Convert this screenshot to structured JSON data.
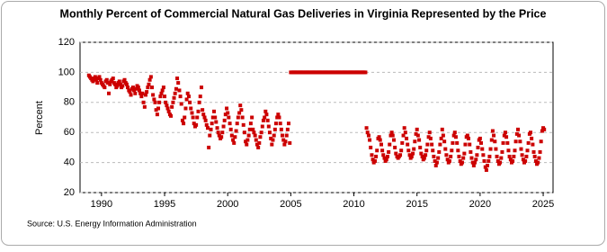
{
  "chart_data": {
    "type": "scatter",
    "title": "Monthly Percent of Commercial Natural Gas Deliveries in Virginia Represented by the Price",
    "y_label": "Percent",
    "source": "Source: U.S. Energy Information Administration",
    "color": "#cc0000",
    "grid": true,
    "xlim": [
      1988.3,
      2025.78
    ],
    "xticks": [
      1990,
      1995,
      2000,
      2005,
      2010,
      2015,
      2020,
      2025
    ],
    "ylim": [
      20,
      120
    ],
    "yticks": [
      20,
      40,
      60,
      80,
      100,
      120
    ],
    "x": [
      1989,
      1989.08,
      1989.17,
      1989.25,
      1989.33,
      1989.42,
      1989.5,
      1989.58,
      1989.67,
      1989.75,
      1989.83,
      1989.92,
      1990,
      1990.08,
      1990.17,
      1990.25,
      1990.33,
      1990.42,
      1990.5,
      1990.58,
      1990.67,
      1990.75,
      1990.83,
      1990.92,
      1991,
      1991.08,
      1991.17,
      1991.25,
      1991.33,
      1991.42,
      1991.5,
      1991.58,
      1991.67,
      1991.75,
      1991.83,
      1991.92,
      1992,
      1992.08,
      1992.17,
      1992.25,
      1992.33,
      1992.42,
      1992.5,
      1992.58,
      1992.67,
      1992.75,
      1992.83,
      1992.92,
      1993,
      1993.08,
      1993.17,
      1993.25,
      1993.33,
      1993.42,
      1993.5,
      1993.58,
      1993.67,
      1993.75,
      1993.83,
      1993.92,
      1994,
      1994.08,
      1994.17,
      1994.25,
      1994.33,
      1994.42,
      1994.5,
      1994.58,
      1994.67,
      1994.75,
      1994.83,
      1994.92,
      1995,
      1995.08,
      1995.17,
      1995.25,
      1995.33,
      1995.42,
      1995.5,
      1995.58,
      1995.67,
      1995.75,
      1995.83,
      1995.92,
      1996,
      1996.08,
      1996.17,
      1996.25,
      1996.33,
      1996.42,
      1996.5,
      1996.58,
      1996.67,
      1996.75,
      1996.83,
      1996.92,
      1997,
      1997.08,
      1997.17,
      1997.25,
      1997.33,
      1997.42,
      1997.5,
      1997.58,
      1997.67,
      1997.75,
      1997.83,
      1997.92,
      1998,
      1998.08,
      1998.17,
      1998.25,
      1998.33,
      1998.42,
      1998.5,
      1998.58,
      1998.67,
      1998.75,
      1998.83,
      1998.92,
      1999,
      1999.08,
      1999.17,
      1999.25,
      1999.33,
      1999.42,
      1999.5,
      1999.58,
      1999.67,
      1999.75,
      1999.83,
      1999.92,
      2000,
      2000.08,
      2000.17,
      2000.25,
      2000.33,
      2000.42,
      2000.5,
      2000.58,
      2000.67,
      2000.75,
      2000.83,
      2000.92,
      2001,
      2001.08,
      2001.17,
      2001.25,
      2001.33,
      2001.42,
      2001.5,
      2001.58,
      2001.67,
      2001.75,
      2001.83,
      2001.92,
      2002,
      2002.08,
      2002.17,
      2002.25,
      2002.33,
      2002.42,
      2002.5,
      2002.58,
      2002.67,
      2002.75,
      2002.83,
      2002.92,
      2003,
      2003.08,
      2003.17,
      2003.25,
      2003.33,
      2003.42,
      2003.5,
      2003.58,
      2003.67,
      2003.75,
      2003.83,
      2003.92,
      2004,
      2004.08,
      2004.17,
      2004.25,
      2004.33,
      2004.42,
      2004.5,
      2004.58,
      2004.67,
      2004.75,
      2004.83,
      2004.92,
      2005,
      2005.08,
      2005.17,
      2005.25,
      2005.33,
      2005.42,
      2005.5,
      2005.58,
      2005.67,
      2005.75,
      2005.83,
      2005.92,
      2006,
      2006.08,
      2006.17,
      2006.25,
      2006.33,
      2006.42,
      2006.5,
      2006.58,
      2006.67,
      2006.75,
      2006.83,
      2006.92,
      2007,
      2007.08,
      2007.17,
      2007.25,
      2007.33,
      2007.42,
      2007.5,
      2007.58,
      2007.67,
      2007.75,
      2007.83,
      2007.92,
      2008,
      2008.08,
      2008.17,
      2008.25,
      2008.33,
      2008.42,
      2008.5,
      2008.58,
      2008.67,
      2008.75,
      2008.83,
      2008.92,
      2009,
      2009.08,
      2009.17,
      2009.25,
      2009.33,
      2009.42,
      2009.5,
      2009.58,
      2009.67,
      2009.75,
      2009.83,
      2009.92,
      2010,
      2010.08,
      2010.17,
      2010.25,
      2010.33,
      2010.42,
      2010.5,
      2010.58,
      2010.67,
      2010.75,
      2010.83,
      2010.92,
      2011,
      2011.08,
      2011.17,
      2011.25,
      2011.33,
      2011.42,
      2011.5,
      2011.58,
      2011.67,
      2011.75,
      2011.83,
      2011.92,
      2012,
      2012.08,
      2012.17,
      2012.25,
      2012.33,
      2012.42,
      2012.5,
      2012.58,
      2012.67,
      2012.75,
      2012.83,
      2012.92,
      2013,
      2013.08,
      2013.17,
      2013.25,
      2013.33,
      2013.42,
      2013.5,
      2013.58,
      2013.67,
      2013.75,
      2013.83,
      2013.92,
      2014,
      2014.08,
      2014.17,
      2014.25,
      2014.33,
      2014.42,
      2014.5,
      2014.58,
      2014.67,
      2014.75,
      2014.83,
      2014.92,
      2015,
      2015.08,
      2015.17,
      2015.25,
      2015.33,
      2015.42,
      2015.5,
      2015.58,
      2015.67,
      2015.75,
      2015.83,
      2015.92,
      2016,
      2016.08,
      2016.17,
      2016.25,
      2016.33,
      2016.42,
      2016.5,
      2016.58,
      2016.67,
      2016.75,
      2016.83,
      2016.92,
      2017,
      2017.08,
      2017.17,
      2017.25,
      2017.33,
      2017.42,
      2017.5,
      2017.58,
      2017.67,
      2017.75,
      2017.83,
      2017.92,
      2018,
      2018.08,
      2018.17,
      2018.25,
      2018.33,
      2018.42,
      2018.5,
      2018.58,
      2018.67,
      2018.75,
      2018.83,
      2018.92,
      2019,
      2019.08,
      2019.17,
      2019.25,
      2019.33,
      2019.42,
      2019.5,
      2019.58,
      2019.67,
      2019.75,
      2019.83,
      2019.92,
      2020,
      2020.08,
      2020.17,
      2020.25,
      2020.33,
      2020.42,
      2020.5,
      2020.58,
      2020.67,
      2020.75,
      2020.83,
      2020.92,
      2021,
      2021.08,
      2021.17,
      2021.25,
      2021.33,
      2021.42,
      2021.5,
      2021.58,
      2021.67,
      2021.75,
      2021.83,
      2021.92,
      2022,
      2022.08,
      2022.17,
      2022.25,
      2022.33,
      2022.42,
      2022.5,
      2022.58,
      2022.67,
      2022.75,
      2022.83,
      2022.92,
      2023,
      2023.08,
      2023.17,
      2023.25,
      2023.33,
      2023.42,
      2023.5,
      2023.58,
      2023.67,
      2023.75,
      2023.83,
      2023.92,
      2024,
      2024.08,
      2024.17,
      2024.25,
      2024.33,
      2024.42,
      2024.5,
      2024.58,
      2024.67,
      2024.75,
      2024.83,
      2024.92,
      2025,
      2025.08
    ],
    "values": [
      98,
      97,
      96,
      95,
      94,
      96,
      97,
      95,
      93,
      96,
      97,
      95,
      93,
      92,
      91,
      90,
      94,
      95,
      93,
      86,
      92,
      94,
      95,
      96,
      93,
      92,
      90,
      91,
      93,
      94,
      92,
      90,
      91,
      94,
      95,
      93,
      92,
      90,
      88,
      87,
      85,
      89,
      90,
      88,
      86,
      89,
      91,
      90,
      88,
      86,
      84,
      86,
      80,
      77,
      85,
      87,
      90,
      92,
      95,
      97,
      90,
      85,
      82,
      80,
      75,
      72,
      76,
      80,
      84,
      86,
      88,
      90,
      84,
      80,
      78,
      76,
      74,
      72,
      71,
      77,
      80,
      83,
      86,
      89,
      96,
      93,
      88,
      84,
      79,
      68,
      66,
      70,
      76,
      82,
      86,
      84,
      80,
      76,
      73,
      70,
      66,
      64,
      65,
      70,
      74,
      80,
      84,
      90,
      75,
      72,
      70,
      68,
      65,
      63,
      50,
      58,
      62,
      66,
      70,
      74,
      70,
      67,
      63,
      60,
      58,
      56,
      57,
      60,
      64,
      68,
      72,
      76,
      73,
      70,
      66,
      62,
      58,
      55,
      53,
      57,
      61,
      66,
      70,
      73,
      78,
      75,
      70,
      65,
      60,
      54,
      52,
      55,
      58,
      62,
      66,
      70,
      62,
      60,
      58,
      55,
      52,
      50,
      53,
      57,
      60,
      64,
      68,
      70,
      74,
      72,
      68,
      64,
      60,
      56,
      52,
      55,
      58,
      62,
      66,
      70,
      72,
      70,
      66,
      62,
      58,
      55,
      52,
      54,
      58,
      62,
      66,
      53,
      100,
      100,
      100,
      100,
      100,
      100,
      100,
      100,
      100,
      100,
      100,
      100,
      100,
      100,
      100,
      100,
      100,
      100,
      100,
      100,
      100,
      100,
      100,
      100,
      100,
      100,
      100,
      100,
      100,
      100,
      100,
      100,
      100,
      100,
      100,
      100,
      100,
      100,
      100,
      100,
      100,
      100,
      100,
      100,
      100,
      100,
      100,
      100,
      100,
      100,
      100,
      100,
      100,
      100,
      100,
      100,
      100,
      100,
      100,
      100,
      100,
      100,
      100,
      100,
      100,
      100,
      100,
      100,
      100,
      100,
      100,
      100,
      63,
      60,
      58,
      55,
      50,
      45,
      42,
      40,
      41,
      44,
      48,
      56,
      57,
      55,
      52,
      48,
      45,
      43,
      41,
      42,
      44,
      47,
      52,
      58,
      60,
      58,
      55,
      50,
      46,
      44,
      43,
      44,
      45,
      48,
      53,
      58,
      63,
      60,
      56,
      52,
      48,
      45,
      43,
      44,
      46,
      49,
      54,
      59,
      62,
      58,
      55,
      50,
      46,
      44,
      42,
      43,
      45,
      48,
      52,
      57,
      60,
      56,
      52,
      48,
      44,
      41,
      38,
      40,
      43,
      47,
      52,
      56,
      62,
      58,
      54,
      49,
      45,
      42,
      40,
      41,
      44,
      48,
      53,
      58,
      60,
      57,
      53,
      48,
      44,
      41,
      39,
      40,
      43,
      46,
      52,
      57,
      58,
      56,
      52,
      47,
      43,
      40,
      38,
      40,
      42,
      45,
      50,
      55,
      56,
      53,
      49,
      45,
      41,
      37,
      35,
      38,
      41,
      44,
      49,
      55,
      61,
      58,
      54,
      49,
      44,
      41,
      39,
      40,
      43,
      47,
      53,
      58,
      60,
      57,
      53,
      48,
      44,
      42,
      40,
      41,
      44,
      48,
      54,
      59,
      62,
      58,
      54,
      49,
      45,
      42,
      40,
      41,
      44,
      48,
      53,
      59,
      60,
      56,
      52,
      47,
      44,
      41,
      39,
      40,
      43,
      47,
      54,
      61,
      63,
      62
    ]
  }
}
